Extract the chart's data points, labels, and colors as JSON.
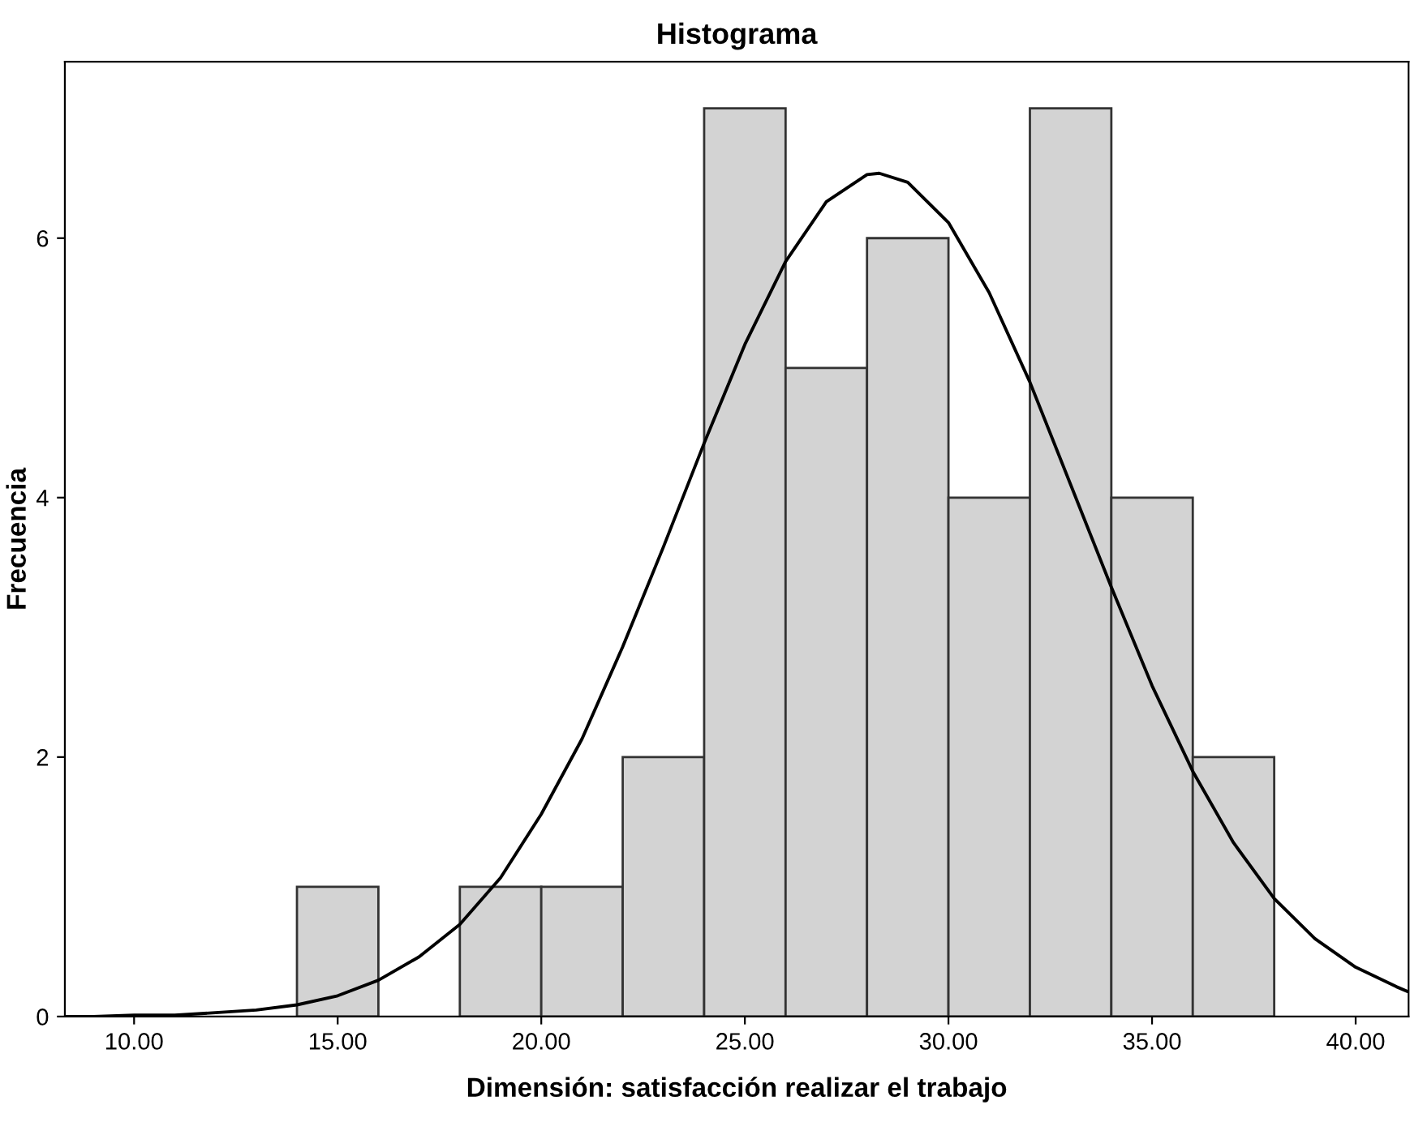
{
  "chart_data": {
    "type": "histogram",
    "title": "Histograma",
    "xlabel": "Dimensión: satisfacción realizar el trabajo",
    "ylabel": "Frecuencia",
    "bins": [
      14,
      16,
      18,
      20,
      22,
      24,
      26,
      28,
      30,
      32,
      34,
      36,
      38
    ],
    "values": [
      1,
      0,
      1,
      1,
      2,
      7,
      5,
      6,
      4,
      7,
      4,
      2
    ],
    "color": "#d3d3d3",
    "series": [
      {
        "type": "line",
        "color": "#000000",
        "x": [
          8.3,
          9,
          10,
          11,
          12,
          13,
          14,
          15,
          16,
          17,
          18,
          19,
          20,
          21,
          22,
          23,
          24,
          25,
          26,
          27,
          28,
          28.3,
          29,
          30,
          31,
          32,
          33,
          34,
          35,
          36,
          37,
          38,
          39,
          40,
          41,
          41.3
        ],
        "values": [
          0.0,
          0.0,
          0.01,
          0.01,
          0.03,
          0.05,
          0.09,
          0.16,
          0.28,
          0.46,
          0.71,
          1.07,
          1.56,
          2.14,
          2.85,
          3.62,
          4.42,
          5.18,
          5.82,
          6.28,
          6.49,
          6.5,
          6.43,
          6.12,
          5.58,
          4.89,
          4.1,
          3.31,
          2.55,
          1.89,
          1.34,
          0.91,
          0.6,
          0.38,
          0.23,
          0.19
        ]
      }
    ],
    "xlim": [
      8.3,
      41.3
    ],
    "ylim": [
      0,
      7.36
    ],
    "xticks": [
      {
        "value": 10,
        "label": "10.00"
      },
      {
        "value": 15,
        "label": "15.00"
      },
      {
        "value": 20,
        "label": "20.00"
      },
      {
        "value": 25,
        "label": "25.00"
      },
      {
        "value": 30,
        "label": "30.00"
      },
      {
        "value": 35,
        "label": "35.00"
      },
      {
        "value": 40,
        "label": "40.00"
      }
    ],
    "yticks": [
      0,
      2,
      4,
      6
    ],
    "grid": false
  }
}
